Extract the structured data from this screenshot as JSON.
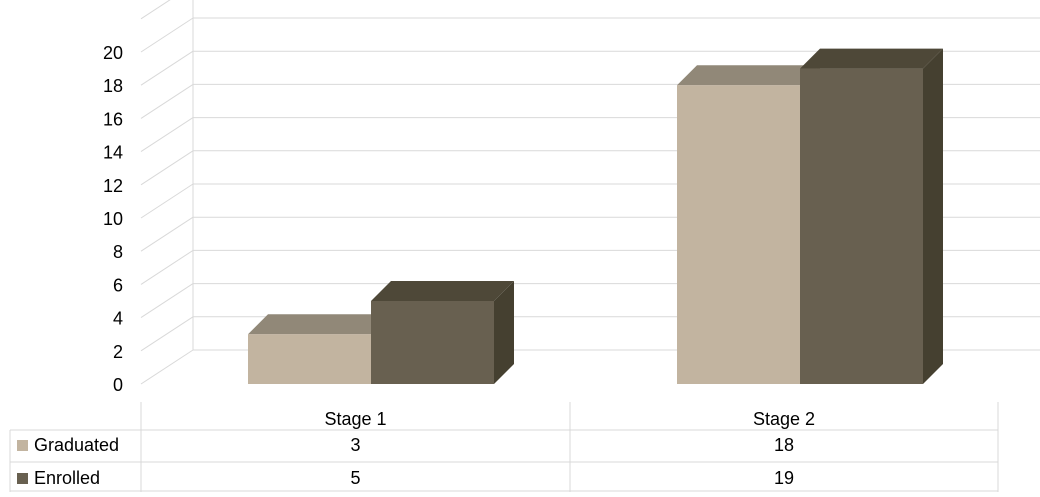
{
  "chart_data": {
    "type": "bar",
    "style": "3d-clustered-column-with-data-table",
    "categories": [
      "Stage 1",
      "Stage 2"
    ],
    "series": [
      {
        "name": "Graduated",
        "values": [
          3,
          18
        ],
        "color": "#c2b4a0",
        "top_color": "#918878",
        "side_color": "#918878"
      },
      {
        "name": "Enrolled",
        "values": [
          5,
          19
        ],
        "color": "#686050",
        "top_color": "#4e4838",
        "side_color": "#454030"
      }
    ],
    "y_ticks": [
      "0",
      "2",
      "4",
      "6",
      "8",
      "10",
      "12",
      "14",
      "16",
      "18",
      "20"
    ],
    "ylim": [
      0,
      20
    ],
    "grid": true,
    "legend": "data-table",
    "title": "",
    "xlabel": "",
    "ylabel": "",
    "gridline_color": "#d9d9d9",
    "table_border_color": "#d9d9d9"
  }
}
